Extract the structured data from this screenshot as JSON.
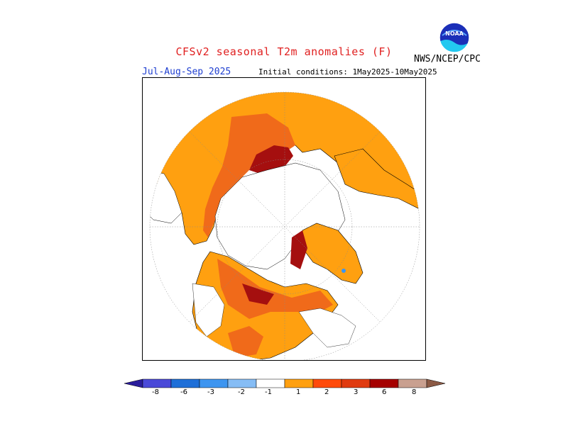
{
  "header": {
    "title": "CFSv2 seasonal T2m anomalies (F)",
    "season": "Jul-Aug-Sep 2025",
    "initial_conditions": "Initial conditions: 1May2025-10May2025",
    "agency": "NWS/NCEP/CPC",
    "logo_text": "NOAA"
  },
  "legend": {
    "tick_labels": [
      "-8",
      "-6",
      "-3",
      "-2",
      "-1",
      "1",
      "2",
      "3",
      "6",
      "8"
    ],
    "colors": [
      "#2a1d9c",
      "#4a49d8",
      "#1e6fd8",
      "#3d95f0",
      "#86bdf5",
      "#ffffff",
      "#ffa010",
      "#ff4a0a",
      "#e03b10",
      "#a50000",
      "#c9a090",
      "#8b5a45"
    ]
  },
  "map": {
    "projection": "polar-stereographic",
    "colors": {
      "anomaly_1_2": "#ffa010",
      "anomaly_2_3": "#f06a1a",
      "anomaly_3_6": "#a50f0f",
      "anomaly_m1_m2": "#3d95f0",
      "land_no_anomaly": "#ffffff",
      "coastline": "#000000"
    }
  }
}
